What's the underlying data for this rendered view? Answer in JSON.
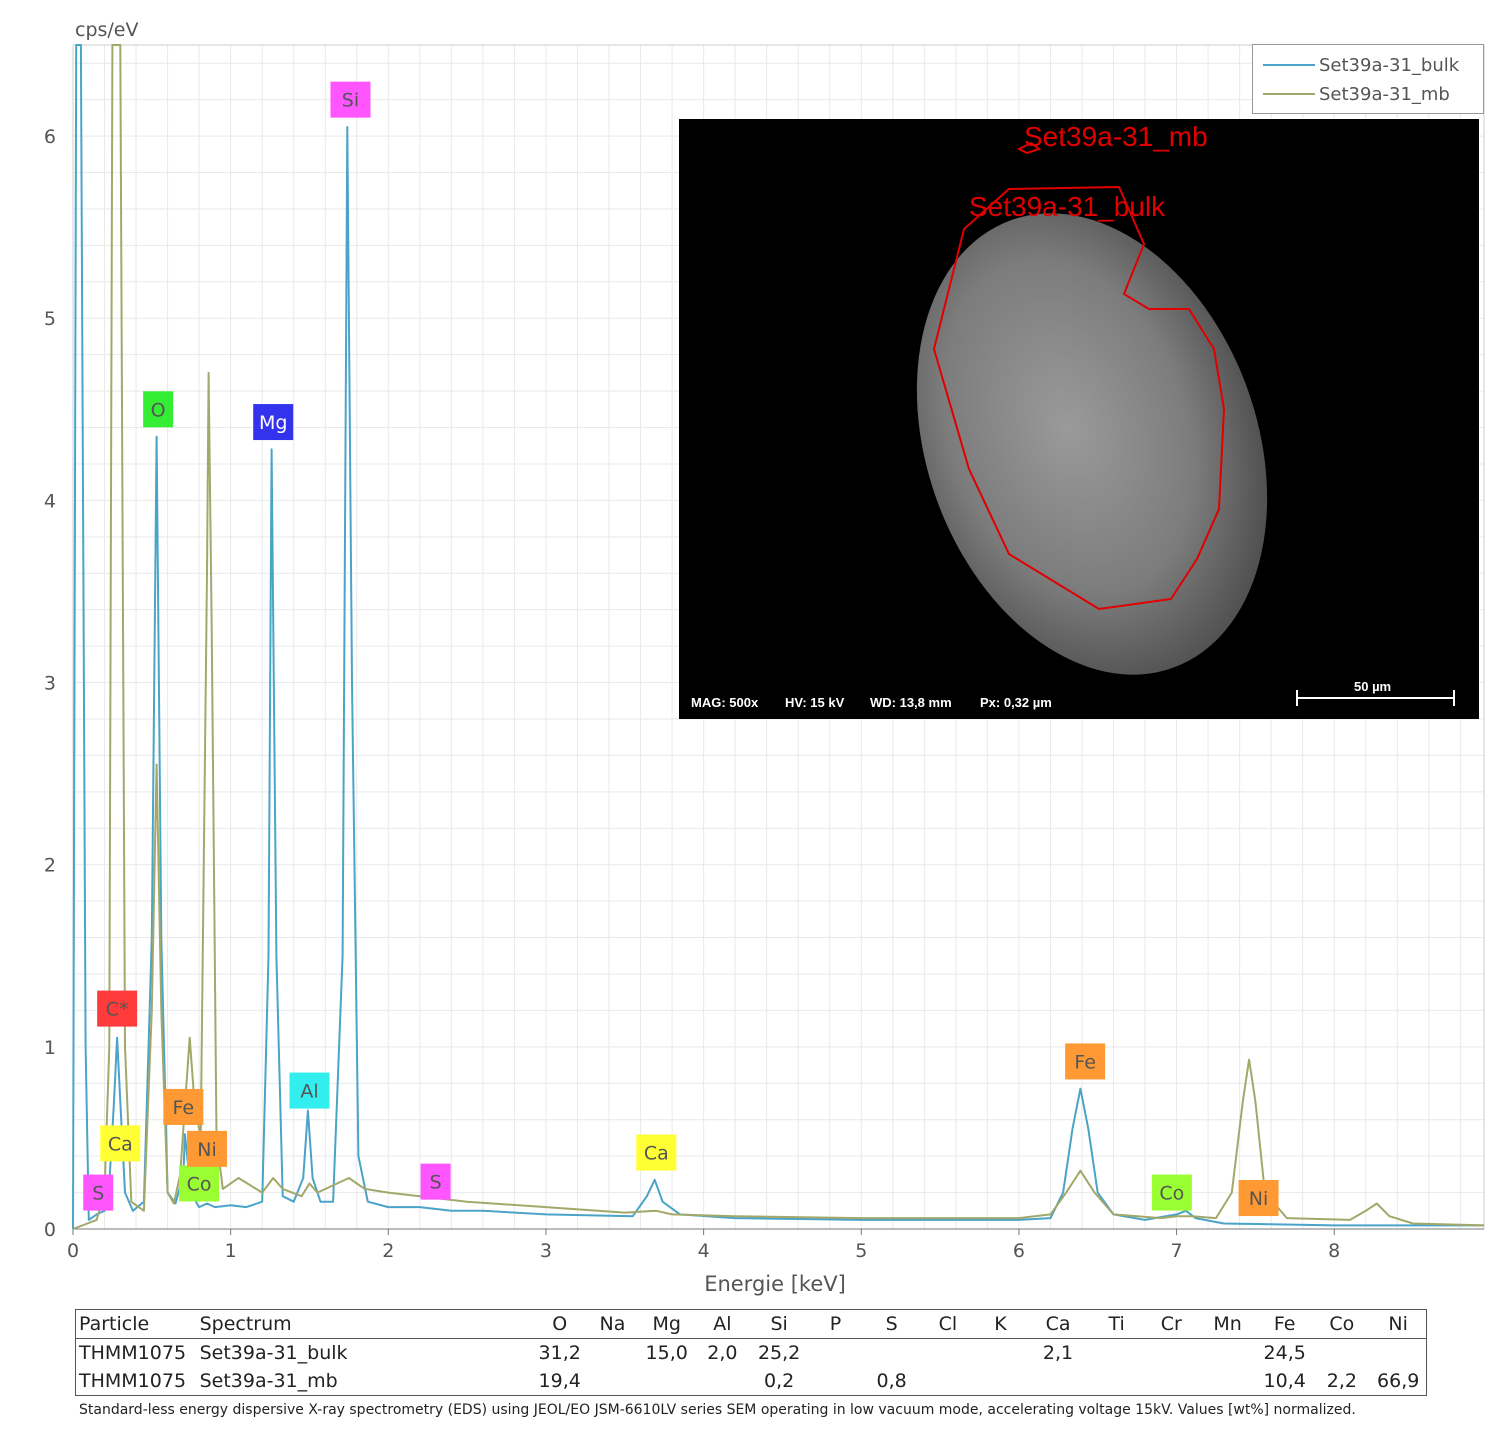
{
  "chart_data": {
    "type": "line",
    "ylabel": "cps/eV",
    "xlabel": "Energie [keV]",
    "xlim": [
      0,
      8.95
    ],
    "ylim": [
      0,
      6.5
    ],
    "x_ticks": [
      0,
      1,
      2,
      3,
      4,
      5,
      6,
      7,
      8
    ],
    "y_ticks": [
      0,
      1,
      2,
      3,
      4,
      5,
      6
    ],
    "grid": true,
    "legend_position": "top-right",
    "series": [
      {
        "name": "Set39a-31_bulk",
        "color": "#4aa3c8",
        "points": [
          [
            0.0,
            0.0
          ],
          [
            0.02,
            6.5
          ],
          [
            0.05,
            6.5
          ],
          [
            0.08,
            1.0
          ],
          [
            0.1,
            0.05
          ],
          [
            0.15,
            0.08
          ],
          [
            0.2,
            0.1
          ],
          [
            0.23,
            0.25
          ],
          [
            0.26,
            0.7
          ],
          [
            0.28,
            1.05
          ],
          [
            0.3,
            0.7
          ],
          [
            0.33,
            0.2
          ],
          [
            0.38,
            0.1
          ],
          [
            0.45,
            0.15
          ],
          [
            0.5,
            1.6
          ],
          [
            0.53,
            4.35
          ],
          [
            0.56,
            1.6
          ],
          [
            0.6,
            0.2
          ],
          [
            0.65,
            0.14
          ],
          [
            0.7,
            0.3
          ],
          [
            0.71,
            0.52
          ],
          [
            0.73,
            0.35
          ],
          [
            0.76,
            0.18
          ],
          [
            0.8,
            0.12
          ],
          [
            0.85,
            0.14
          ],
          [
            0.9,
            0.12
          ],
          [
            1.0,
            0.13
          ],
          [
            1.1,
            0.12
          ],
          [
            1.2,
            0.15
          ],
          [
            1.24,
            1.5
          ],
          [
            1.26,
            4.28
          ],
          [
            1.29,
            1.5
          ],
          [
            1.33,
            0.18
          ],
          [
            1.4,
            0.15
          ],
          [
            1.46,
            0.28
          ],
          [
            1.49,
            0.65
          ],
          [
            1.52,
            0.28
          ],
          [
            1.57,
            0.15
          ],
          [
            1.65,
            0.15
          ],
          [
            1.71,
            1.5
          ],
          [
            1.74,
            6.05
          ],
          [
            1.77,
            3.0
          ],
          [
            1.81,
            0.4
          ],
          [
            1.87,
            0.15
          ],
          [
            2.0,
            0.12
          ],
          [
            2.2,
            0.12
          ],
          [
            2.4,
            0.1
          ],
          [
            2.6,
            0.1
          ],
          [
            3.0,
            0.08
          ],
          [
            3.55,
            0.07
          ],
          [
            3.64,
            0.18
          ],
          [
            3.69,
            0.27
          ],
          [
            3.74,
            0.15
          ],
          [
            3.85,
            0.08
          ],
          [
            4.2,
            0.06
          ],
          [
            5.0,
            0.05
          ],
          [
            6.0,
            0.05
          ],
          [
            6.2,
            0.06
          ],
          [
            6.28,
            0.2
          ],
          [
            6.34,
            0.55
          ],
          [
            6.39,
            0.77
          ],
          [
            6.44,
            0.55
          ],
          [
            6.5,
            0.2
          ],
          [
            6.6,
            0.08
          ],
          [
            6.8,
            0.05
          ],
          [
            7.0,
            0.08
          ],
          [
            7.06,
            0.1
          ],
          [
            7.12,
            0.06
          ],
          [
            7.3,
            0.03
          ],
          [
            8.0,
            0.02
          ],
          [
            8.95,
            0.02
          ]
        ]
      },
      {
        "name": "Set39a-31_mb",
        "color": "#a3a86a",
        "points": [
          [
            0.0,
            0.0
          ],
          [
            0.15,
            0.05
          ],
          [
            0.2,
            0.2
          ],
          [
            0.23,
            1.0
          ],
          [
            0.25,
            6.5
          ],
          [
            0.3,
            6.5
          ],
          [
            0.33,
            1.0
          ],
          [
            0.37,
            0.15
          ],
          [
            0.45,
            0.1
          ],
          [
            0.5,
            1.2
          ],
          [
            0.53,
            2.55
          ],
          [
            0.56,
            1.2
          ],
          [
            0.6,
            0.2
          ],
          [
            0.64,
            0.14
          ],
          [
            0.68,
            0.3
          ],
          [
            0.72,
            0.8
          ],
          [
            0.74,
            1.05
          ],
          [
            0.77,
            0.7
          ],
          [
            0.81,
            0.5
          ],
          [
            0.85,
            3.6
          ],
          [
            0.86,
            4.7
          ],
          [
            0.88,
            3.3
          ],
          [
            0.91,
            0.5
          ],
          [
            0.95,
            0.22
          ],
          [
            1.05,
            0.28
          ],
          [
            1.2,
            0.2
          ],
          [
            1.27,
            0.28
          ],
          [
            1.33,
            0.22
          ],
          [
            1.45,
            0.18
          ],
          [
            1.5,
            0.25
          ],
          [
            1.55,
            0.2
          ],
          [
            1.75,
            0.28
          ],
          [
            1.85,
            0.22
          ],
          [
            2.0,
            0.2
          ],
          [
            2.2,
            0.18
          ],
          [
            2.5,
            0.15
          ],
          [
            3.0,
            0.12
          ],
          [
            3.5,
            0.09
          ],
          [
            3.7,
            0.1
          ],
          [
            3.8,
            0.08
          ],
          [
            4.2,
            0.07
          ],
          [
            5.0,
            0.06
          ],
          [
            6.0,
            0.06
          ],
          [
            6.2,
            0.08
          ],
          [
            6.3,
            0.2
          ],
          [
            6.39,
            0.32
          ],
          [
            6.48,
            0.2
          ],
          [
            6.6,
            0.08
          ],
          [
            6.9,
            0.06
          ],
          [
            7.0,
            0.07
          ],
          [
            7.1,
            0.07
          ],
          [
            7.25,
            0.06
          ],
          [
            7.35,
            0.2
          ],
          [
            7.42,
            0.7
          ],
          [
            7.46,
            0.93
          ],
          [
            7.5,
            0.7
          ],
          [
            7.56,
            0.2
          ],
          [
            7.7,
            0.06
          ],
          [
            8.1,
            0.05
          ],
          [
            8.2,
            0.1
          ],
          [
            8.27,
            0.14
          ],
          [
            8.35,
            0.07
          ],
          [
            8.5,
            0.03
          ],
          [
            8.95,
            0.02
          ]
        ]
      }
    ],
    "element_labels": [
      {
        "text": "S",
        "x": 0.16,
        "y": 0.2,
        "color": "#ff55ff"
      },
      {
        "text": "C*",
        "x": 0.28,
        "y": 1.21,
        "color": "#ff3b3b"
      },
      {
        "text": "Ca",
        "x": 0.3,
        "y": 0.47,
        "color": "#ffff33"
      },
      {
        "text": "O",
        "x": 0.54,
        "y": 4.5,
        "color": "#33ee33"
      },
      {
        "text": "Fe",
        "x": 0.7,
        "y": 0.67,
        "color": "#ff9933"
      },
      {
        "text": "Co",
        "x": 0.8,
        "y": 0.25,
        "color": "#99ff33"
      },
      {
        "text": "Ni",
        "x": 0.85,
        "y": 0.44,
        "color": "#ff9933"
      },
      {
        "text": "Mg",
        "x": 1.27,
        "y": 4.43,
        "color": "#3333ee"
      },
      {
        "text": "Al",
        "x": 1.5,
        "y": 0.76,
        "color": "#33eeee"
      },
      {
        "text": "Si",
        "x": 1.76,
        "y": 6.2,
        "color": "#ff55ff"
      },
      {
        "text": "S",
        "x": 2.3,
        "y": 0.26,
        "color": "#ff55ff"
      },
      {
        "text": "Ca",
        "x": 3.7,
        "y": 0.42,
        "color": "#ffff33"
      },
      {
        "text": "Fe",
        "x": 6.42,
        "y": 0.92,
        "color": "#ff9933"
      },
      {
        "text": "Co",
        "x": 6.97,
        "y": 0.2,
        "color": "#99ff33"
      },
      {
        "text": "Ni",
        "x": 7.52,
        "y": 0.17,
        "color": "#ff9933"
      }
    ]
  },
  "legend": [
    {
      "label": "Set39a-31_bulk",
      "color": "#4aa3c8"
    },
    {
      "label": "Set39a-31_mb",
      "color": "#a3a86a"
    }
  ],
  "sem_image": {
    "roi_mb_label": "Set39a-31_mb",
    "roi_bulk_label": "Set39a-31_bulk",
    "mag": "MAG: 500x",
    "hv": "HV: 15 kV",
    "wd": "WD: 13,8 mm",
    "px": "Px: 0,32 µm",
    "scale_bar": "50 µm"
  },
  "table": {
    "columns": [
      "Particle",
      "Spectrum",
      "O",
      "Na",
      "Mg",
      "Al",
      "Si",
      "P",
      "S",
      "Cl",
      "K",
      "Ca",
      "Ti",
      "Cr",
      "Mn",
      "Fe",
      "Co",
      "Ni"
    ],
    "rows": [
      [
        "THMM1075",
        "Set39a-31_bulk",
        "31,2",
        "",
        "15,0",
        "2,0",
        "25,2",
        "",
        "",
        "",
        "",
        "2,1",
        "",
        "",
        "",
        "24,5",
        "",
        ""
      ],
      [
        "THMM1075",
        "Set39a-31_mb",
        "19,4",
        "",
        "",
        "",
        "0,2",
        "",
        "0,8",
        "",
        "",
        "",
        "",
        "",
        "",
        "10,4",
        "2,2",
        "66,9"
      ]
    ]
  },
  "caption": "Standard-less energy dispersive X-ray spectrometry (EDS) using JEOL/EO JSM-6610LV series SEM operating in low vacuum mode, accelerating voltage 15kV. Values [wt%] normalized."
}
